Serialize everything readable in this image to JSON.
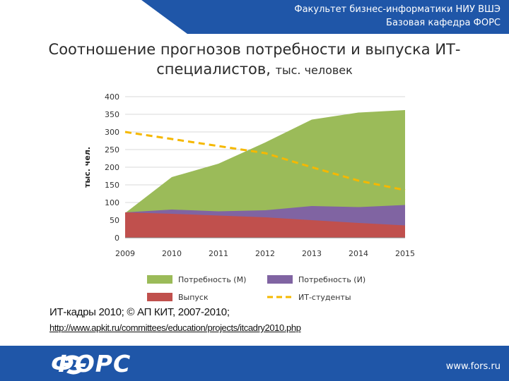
{
  "header": {
    "line1": "Факультет бизнес-информатики НИУ ВШЭ",
    "line2": "Базовая кафедра ФОРС"
  },
  "title": {
    "main": "Соотношение прогнозов потребности и выпуска ИТ-специалистов,",
    "unit": "тыс. человек"
  },
  "chart_data": {
    "type": "area",
    "ylabel": "тыс. чел.",
    "ylim": [
      0,
      400
    ],
    "yticks": [
      0,
      50,
      100,
      150,
      200,
      250,
      300,
      350,
      400
    ],
    "grid": true,
    "legend_position": "bottom",
    "categories": [
      "2009",
      "2010",
      "2011",
      "2012",
      "2013",
      "2014",
      "2015"
    ],
    "series": [
      {
        "name": "Потребность (М)",
        "kind": "area-stacked-total",
        "color": "#9bbb59",
        "values": [
          70,
          172,
          210,
          270,
          335,
          355,
          362
        ]
      },
      {
        "name": "Потребность (И)",
        "kind": "area-stacked-total",
        "color": "#8064a2",
        "values": [
          72,
          80,
          75,
          78,
          90,
          87,
          93
        ]
      },
      {
        "name": "Выпуск",
        "kind": "area",
        "color": "#c0504d",
        "values": [
          72,
          68,
          63,
          58,
          50,
          42,
          35
        ]
      },
      {
        "name": "ИТ-студенты",
        "kind": "line-dashed",
        "color": "#f5b800",
        "values": [
          300,
          280,
          260,
          240,
          200,
          162,
          135
        ]
      }
    ],
    "legend_order": [
      0,
      1,
      2,
      3
    ]
  },
  "source": {
    "line1": "ИТ-кадры 2010; © АП КИТ, 2007-2010;",
    "line2": "http://www.apkit.ru/committees/education/projects/itcadry2010.php"
  },
  "footer": {
    "logo_text": "ФОРС",
    "site": "www.fors.ru"
  },
  "colors": {
    "brand_blue": "#1f56a8",
    "brand_blue_dark": "#163f83"
  }
}
